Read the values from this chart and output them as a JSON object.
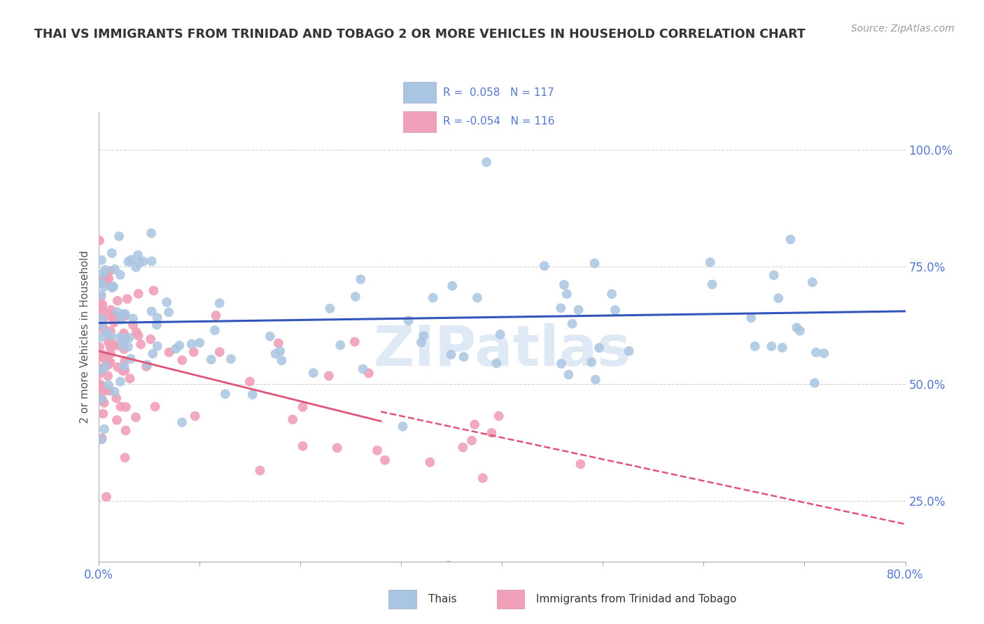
{
  "title": "THAI VS IMMIGRANTS FROM TRINIDAD AND TOBAGO 2 OR MORE VEHICLES IN HOUSEHOLD CORRELATION CHART",
  "source": "Source: ZipAtlas.com",
  "ylabel": "2 or more Vehicles in Household",
  "series1_label": "Thais",
  "series2_label": "Immigrants from Trinidad and Tobago",
  "series1_R": "0.058",
  "series1_N": "117",
  "series2_R": "-0.054",
  "series2_N": "116",
  "series1_color": "#aac5e2",
  "series2_color": "#f0a0b8",
  "trend1_color": "#3355bb",
  "trend2_color": "#e05575",
  "watermark": "ZIPatlas",
  "background_color": "#ffffff",
  "xmin": 0.0,
  "xmax": 80.0,
  "ymin": 12.0,
  "ymax": 108.0,
  "grid_color": "#cccccc",
  "tick_color": "#5577cc",
  "title_color": "#333333",
  "source_color": "#999999",
  "ylabel_color": "#555555",
  "trend1_y_start": 63.0,
  "trend1_y_end": 65.5,
  "trend2_y_start": 57.0,
  "trend2_y_end": 20.0,
  "trend2_solid_x_end": 28.0,
  "trend2_solid_y_end": 42.0
}
